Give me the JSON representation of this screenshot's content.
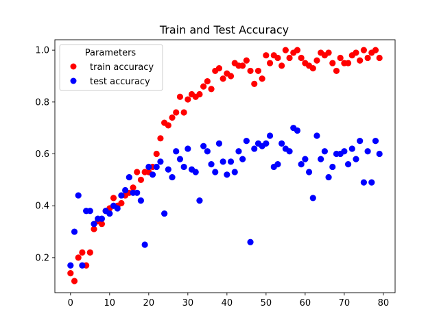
{
  "chart_data": {
    "type": "scatter",
    "title": "Train and Test Accuracy",
    "xlabel": "",
    "ylabel": "",
    "xlim": [
      -4,
      83
    ],
    "ylim": [
      0.065,
      1.04
    ],
    "xticks": [
      0,
      10,
      20,
      30,
      40,
      50,
      60,
      70,
      80
    ],
    "yticks": [
      0.2,
      0.4,
      0.6,
      0.8,
      1.0
    ],
    "grid": false,
    "legend": {
      "title": "Parameters",
      "position": "top-left"
    },
    "series": [
      {
        "name": "train accuracy",
        "color": "#ff0000",
        "x": [
          0,
          1,
          2,
          3,
          4,
          5,
          6,
          7,
          8,
          9,
          10,
          11,
          12,
          13,
          14,
          15,
          16,
          17,
          18,
          19,
          20,
          21,
          22,
          23,
          24,
          25,
          26,
          27,
          28,
          29,
          30,
          31,
          32,
          33,
          34,
          35,
          36,
          37,
          38,
          39,
          40,
          41,
          42,
          43,
          44,
          45,
          46,
          47,
          48,
          49,
          50,
          51,
          52,
          53,
          54,
          55,
          56,
          57,
          58,
          59,
          60,
          61,
          62,
          63,
          64,
          65,
          66,
          67,
          68,
          69,
          70,
          71,
          72,
          73,
          74,
          75,
          76,
          77,
          78,
          79
        ],
        "y": [
          0.14,
          0.11,
          0.2,
          0.22,
          0.17,
          0.22,
          0.31,
          0.34,
          0.33,
          0.38,
          0.39,
          0.43,
          0.4,
          0.41,
          0.44,
          0.45,
          0.47,
          0.53,
          0.5,
          0.53,
          0.53,
          0.55,
          0.6,
          0.66,
          0.72,
          0.71,
          0.74,
          0.76,
          0.82,
          0.76,
          0.81,
          0.83,
          0.82,
          0.83,
          0.86,
          0.88,
          0.85,
          0.92,
          0.93,
          0.89,
          0.91,
          0.9,
          0.95,
          0.94,
          0.94,
          0.96,
          0.92,
          0.87,
          0.92,
          0.89,
          0.98,
          0.95,
          0.98,
          0.97,
          0.94,
          1.0,
          0.97,
          0.99,
          1.0,
          0.97,
          0.95,
          0.94,
          0.93,
          0.96,
          0.99,
          0.98,
          0.99,
          0.95,
          0.92,
          0.97,
          0.95,
          0.95,
          0.98,
          0.99,
          0.96,
          1.0,
          0.97,
          0.99,
          1.0,
          0.97
        ]
      },
      {
        "name": "test accuracy",
        "color": "#0000ff",
        "x": [
          0,
          1,
          2,
          3,
          4,
          5,
          6,
          7,
          8,
          9,
          10,
          11,
          12,
          13,
          14,
          15,
          16,
          17,
          18,
          19,
          20,
          21,
          22,
          23,
          24,
          25,
          26,
          27,
          28,
          29,
          30,
          31,
          32,
          33,
          34,
          35,
          36,
          37,
          38,
          39,
          40,
          41,
          42,
          43,
          44,
          45,
          46,
          47,
          48,
          49,
          50,
          51,
          52,
          53,
          54,
          55,
          56,
          57,
          58,
          59,
          60,
          61,
          62,
          63,
          64,
          65,
          66,
          67,
          68,
          69,
          70,
          71,
          72,
          73,
          74,
          75,
          76,
          77,
          78,
          79
        ],
        "y": [
          0.17,
          0.3,
          0.44,
          0.17,
          0.38,
          0.38,
          0.33,
          0.35,
          0.35,
          0.38,
          0.37,
          0.4,
          0.39,
          0.44,
          0.46,
          0.51,
          0.45,
          0.45,
          0.42,
          0.25,
          0.55,
          0.52,
          0.55,
          0.57,
          0.37,
          0.54,
          0.51,
          0.61,
          0.58,
          0.55,
          0.62,
          0.54,
          0.53,
          0.42,
          0.63,
          0.61,
          0.56,
          0.53,
          0.64,
          0.57,
          0.52,
          0.57,
          0.53,
          0.61,
          0.58,
          0.65,
          0.26,
          0.62,
          0.64,
          0.63,
          0.64,
          0.67,
          0.55,
          0.56,
          0.64,
          0.62,
          0.61,
          0.7,
          0.69,
          0.56,
          0.58,
          0.53,
          0.43,
          0.67,
          0.58,
          0.61,
          0.51,
          0.55,
          0.6,
          0.6,
          0.61,
          0.56,
          0.62,
          0.58,
          0.65,
          0.49,
          0.61,
          0.49,
          0.65,
          0.6
        ]
      }
    ]
  },
  "colors": {
    "train": "#ff0000",
    "test": "#0000ff"
  }
}
